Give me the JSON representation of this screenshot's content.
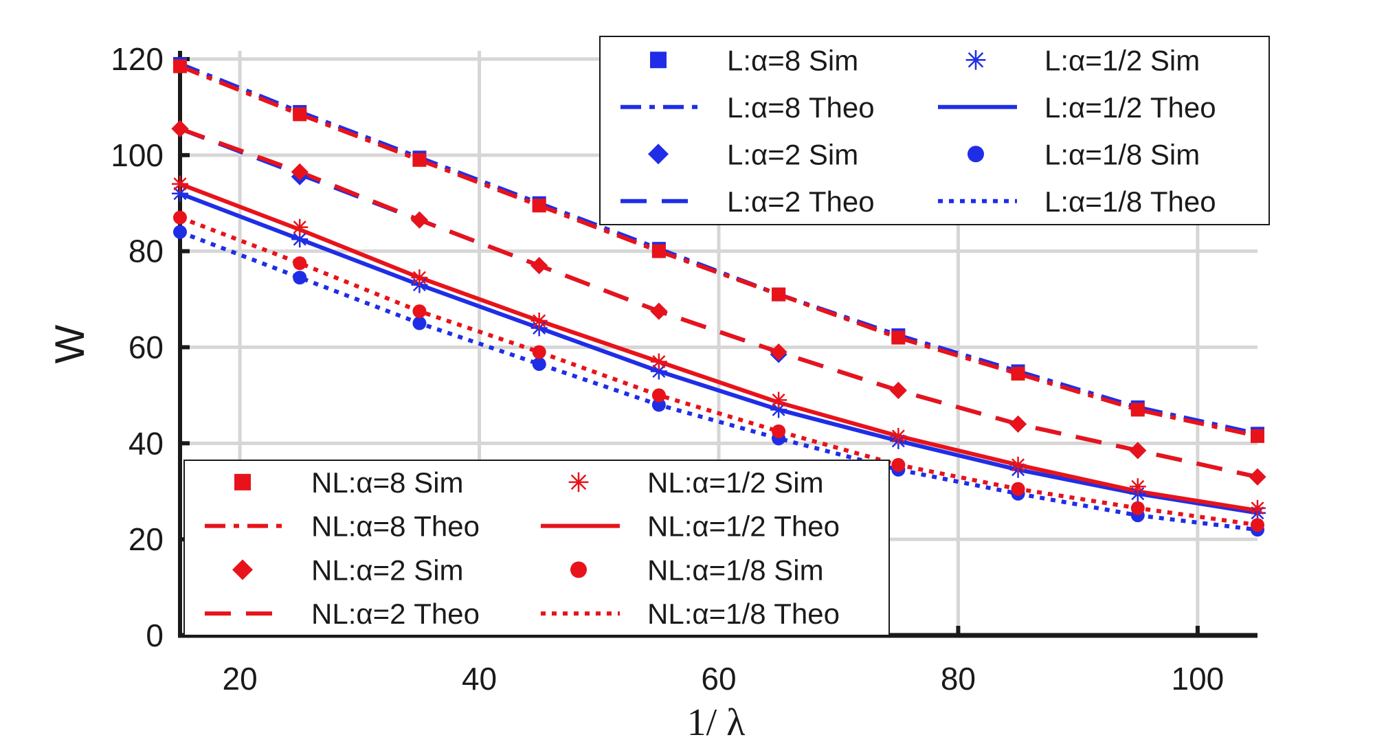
{
  "chart_data": {
    "type": "line",
    "xlabel": "1/ λ",
    "ylabel": "W",
    "xlim": [
      15,
      105
    ],
    "ylim": [
      0,
      120
    ],
    "xticks": [
      20,
      40,
      60,
      80,
      100
    ],
    "yticks": [
      0,
      20,
      40,
      60,
      80,
      100,
      120
    ],
    "grid": true,
    "x": [
      15,
      25,
      35,
      45,
      55,
      65,
      75,
      85,
      95,
      105
    ],
    "series": [
      {
        "name": "L:α=8 Sim",
        "kind": "sim",
        "marker": "square",
        "color": "#1f2ee6",
        "values": [
          119,
          109,
          99.5,
          90,
          80.5,
          71,
          62.5,
          55,
          47.5,
          42
        ]
      },
      {
        "name": "L:α=8 Theo",
        "kind": "theo",
        "dash": "dashdot",
        "color": "#1f2ee6",
        "values": [
          119,
          109,
          99.5,
          90,
          80.5,
          71,
          62.5,
          55,
          47.5,
          42
        ]
      },
      {
        "name": "L:α=2 Sim",
        "kind": "sim",
        "marker": "diamond",
        "color": "#1f2ee6",
        "values": [
          105.5,
          95.5,
          86.5,
          77,
          67.5,
          58.5,
          51,
          44,
          38.5,
          33
        ]
      },
      {
        "name": "L:α=2 Theo",
        "kind": "theo",
        "dash": "dash",
        "color": "#1f2ee6",
        "values": [
          105.5,
          96,
          86.5,
          77,
          67.5,
          59,
          51,
          44,
          38.5,
          33
        ]
      },
      {
        "name": "L:α=1/2 Sim",
        "kind": "sim",
        "marker": "star",
        "color": "#1f2ee6",
        "values": [
          92,
          82.5,
          73,
          64,
          55,
          47,
          40.5,
          34.5,
          29.5,
          25.5
        ]
      },
      {
        "name": "L:α=1/2 Theo",
        "kind": "theo",
        "dash": "solid",
        "color": "#1f2ee6",
        "values": [
          92,
          82.5,
          73,
          64,
          55,
          47,
          40.5,
          34.5,
          29.5,
          25.5
        ]
      },
      {
        "name": "L:α=1/8 Sim",
        "kind": "sim",
        "marker": "circle",
        "color": "#1f2ee6",
        "values": [
          84,
          74.5,
          65,
          56.5,
          48,
          41,
          34.5,
          29.5,
          25,
          22
        ]
      },
      {
        "name": "L:α=1/8 Theo",
        "kind": "theo",
        "dash": "dot",
        "color": "#1f2ee6",
        "values": [
          84,
          74.5,
          65,
          56.5,
          48,
          41,
          34.5,
          29.5,
          25,
          22
        ]
      },
      {
        "name": "NL:α=8 Sim",
        "kind": "sim",
        "marker": "square",
        "color": "#e8131a",
        "values": [
          118.5,
          108.5,
          99,
          89.5,
          80,
          71,
          62,
          54.5,
          47,
          41.5
        ]
      },
      {
        "name": "NL:α=8 Theo",
        "kind": "theo",
        "dash": "dashdot",
        "color": "#e8131a",
        "values": [
          118.5,
          108.5,
          99,
          89.5,
          80,
          71,
          62,
          54.5,
          47,
          41.5
        ]
      },
      {
        "name": "NL:α=2 Sim",
        "kind": "sim",
        "marker": "diamond",
        "color": "#e8131a",
        "values": [
          105.5,
          96.5,
          86.5,
          77,
          67.5,
          59,
          51,
          44,
          38.5,
          33
        ]
      },
      {
        "name": "NL:α=2 Theo",
        "kind": "theo",
        "dash": "dash",
        "color": "#e8131a",
        "values": [
          105.5,
          96.5,
          86.5,
          77,
          67.5,
          59,
          51,
          44,
          38.5,
          33
        ]
      },
      {
        "name": "NL:α=1/2 Sim",
        "kind": "sim",
        "marker": "star",
        "color": "#e8131a",
        "values": [
          94,
          85,
          74.5,
          65.5,
          57,
          49,
          41.5,
          35.5,
          31,
          26.5
        ]
      },
      {
        "name": "NL:α=1/2 Theo",
        "kind": "theo",
        "dash": "solid",
        "color": "#e8131a",
        "values": [
          94,
          84.5,
          74.5,
          65.5,
          57,
          48.5,
          41.5,
          35.5,
          30,
          26
        ]
      },
      {
        "name": "NL:α=1/8 Sim",
        "kind": "sim",
        "marker": "circle",
        "color": "#e8131a",
        "values": [
          87,
          77.5,
          67.5,
          59,
          50,
          42.5,
          35.5,
          30.5,
          26.5,
          23
        ]
      },
      {
        "name": "NL:α=1/8 Theo",
        "kind": "theo",
        "dash": "dot",
        "color": "#e8131a",
        "values": [
          87,
          77.5,
          67.5,
          59,
          50,
          42.5,
          35.5,
          30.5,
          26.5,
          23
        ]
      }
    ],
    "legends": [
      {
        "placement": "top-right",
        "entries": [
          "L:α=8 Sim",
          "L:α=1/2 Sim",
          "L:α=8 Theo",
          "L:α=1/2 Theo",
          "L:α=2 Sim",
          "L:α=1/8 Sim",
          "L:α=2 Theo",
          "L:α=1/8 Theo"
        ]
      },
      {
        "placement": "bottom-left",
        "entries": [
          "NL:α=8 Sim",
          "NL:α=1/2 Sim",
          "NL:α=8 Theo",
          "NL:α=1/2 Theo",
          "NL:α=2 Sim",
          "NL:α=1/8 Sim",
          "NL:α=2 Theo",
          "NL:α=1/8 Theo"
        ]
      }
    ]
  }
}
